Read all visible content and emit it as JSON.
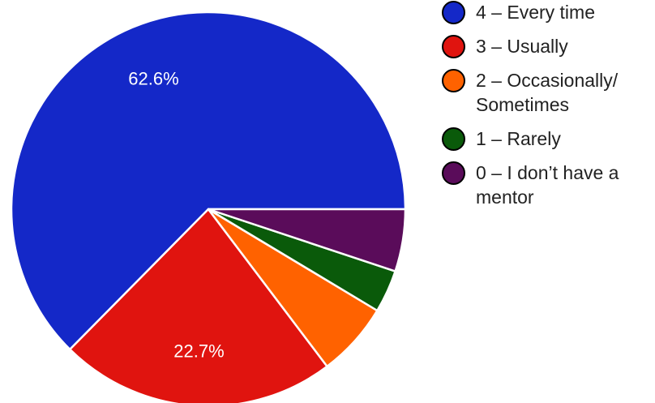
{
  "chart_data": {
    "type": "pie",
    "title": "",
    "categories": [
      "4 – Every time",
      "3 – Usually",
      "2 – Occasionally/ Sometimes",
      "1 – Rarely",
      "0 – I don’t have a mentor"
    ],
    "values": [
      62.6,
      22.7,
      6.1,
      3.5,
      5.1
    ],
    "data_labels": [
      "62.6%",
      "22.7%",
      "",
      "",
      ""
    ],
    "colors": [
      "#1428c8",
      "#e0140f",
      "#ff6200",
      "#0a5a0a",
      "#5a0c5a"
    ],
    "legend_placement": "right"
  },
  "legend": {
    "items": [
      {
        "label": "4 – Every time",
        "color": "#1428c8"
      },
      {
        "label": "3 – Usually",
        "color": "#e0140f"
      },
      {
        "label": "2 – Occasionally/ Sometimes",
        "color": "#ff6200"
      },
      {
        "label": "1 – Rarely",
        "color": "#0a5a0a"
      },
      {
        "label": "0 – I don’t have a mentor",
        "color": "#5a0c5a"
      }
    ]
  }
}
